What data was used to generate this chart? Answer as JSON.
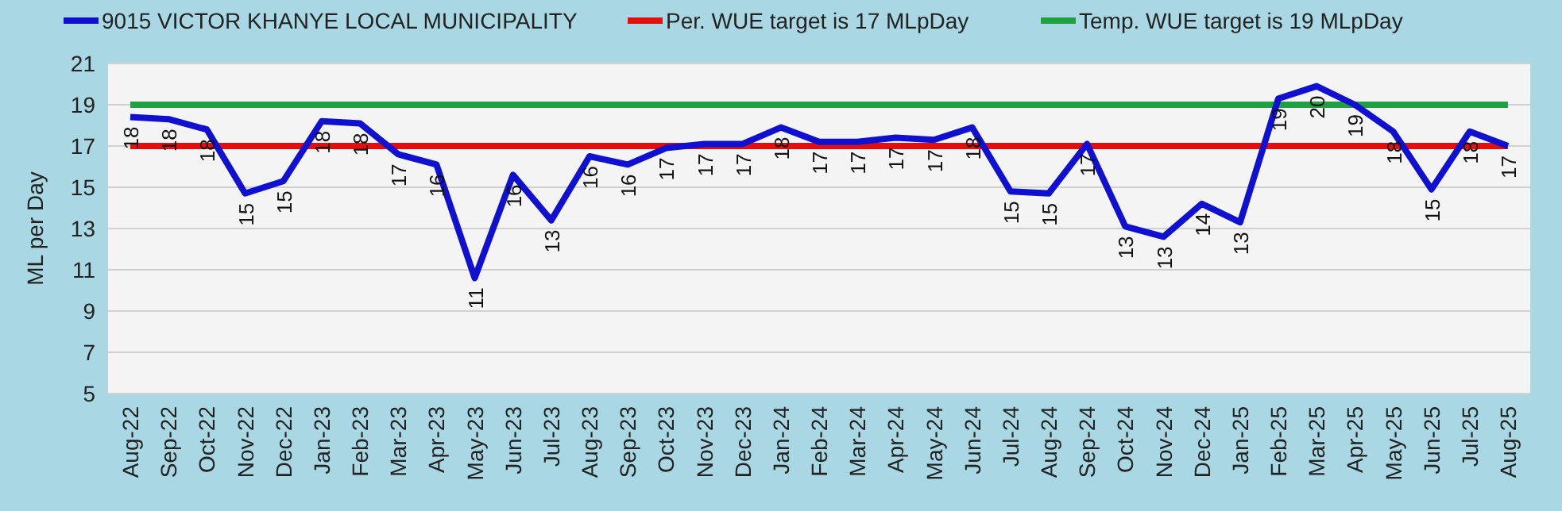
{
  "chart_data": {
    "type": "line",
    "ylabel": "ML per Day",
    "legend": "top",
    "grid": "y",
    "ylim": [
      5,
      21
    ],
    "yticks": [
      5,
      7,
      9,
      11,
      13,
      15,
      17,
      19,
      21
    ],
    "categories": [
      "Aug-22",
      "Sep-22",
      "Oct-22",
      "Nov-22",
      "Dec-22",
      "Jan-23",
      "Feb-23",
      "Mar-23",
      "Apr-23",
      "May-23",
      "Jun-23",
      "Jul-23",
      "Aug-23",
      "Sep-23",
      "Oct-23",
      "Nov-23",
      "Dec-23",
      "Jan-24",
      "Feb-24",
      "Mar-24",
      "Apr-24",
      "May-24",
      "Jun-24",
      "Jul-24",
      "Aug-24",
      "Sep-24",
      "Oct-24",
      "Nov-24",
      "Dec-24",
      "Jan-25",
      "Feb-25",
      "Mar-25",
      "Apr-25",
      "May-25",
      "Jun-25",
      "Jul-25",
      "Aug-25"
    ],
    "series": [
      {
        "name": "9015 VICTOR KHANYE LOCAL MUNICIPALITY",
        "color": "#1010d0",
        "values": [
          18.4,
          18.3,
          17.8,
          14.7,
          15.3,
          18.2,
          18.1,
          16.6,
          16.1,
          10.6,
          15.6,
          13.4,
          16.5,
          16.1,
          16.9,
          17.1,
          17.1,
          17.9,
          17.2,
          17.2,
          17.4,
          17.3,
          17.9,
          14.8,
          14.7,
          17.1,
          13.1,
          12.6,
          14.2,
          13.3,
          19.3,
          19.9,
          19.0,
          17.7,
          14.9,
          17.7,
          17.0
        ],
        "value_labels": [
          "18",
          "18",
          "18",
          "15",
          "15",
          "18",
          "18",
          "17",
          "16",
          "11",
          "16",
          "13",
          "16",
          "16",
          "17",
          "17",
          "17",
          "18",
          "17",
          "17",
          "17",
          "17",
          "18",
          "15",
          "15",
          "17",
          "13",
          "13",
          "14",
          "13",
          "19",
          "20",
          "19",
          "18",
          "15",
          "18",
          "17"
        ]
      },
      {
        "name": "Per. WUE target is 17 MLpDay",
        "color": "#e01010",
        "values": [
          17,
          17,
          17,
          17,
          17,
          17,
          17,
          17,
          17,
          17,
          17,
          17,
          17,
          17,
          17,
          17,
          17,
          17,
          17,
          17,
          17,
          17,
          17,
          17,
          17,
          17,
          17,
          17,
          17,
          17,
          17,
          17,
          17,
          17,
          17,
          17,
          17
        ]
      },
      {
        "name": "Temp. WUE target is 19 MLpDay",
        "color": "#20a040",
        "values": [
          19,
          19,
          19,
          19,
          19,
          19,
          19,
          19,
          19,
          19,
          19,
          19,
          19,
          19,
          19,
          19,
          19,
          19,
          19,
          19,
          19,
          19,
          19,
          19,
          19,
          19,
          19,
          19,
          19,
          19,
          19,
          19,
          19,
          19,
          19,
          19,
          19
        ]
      }
    ]
  }
}
